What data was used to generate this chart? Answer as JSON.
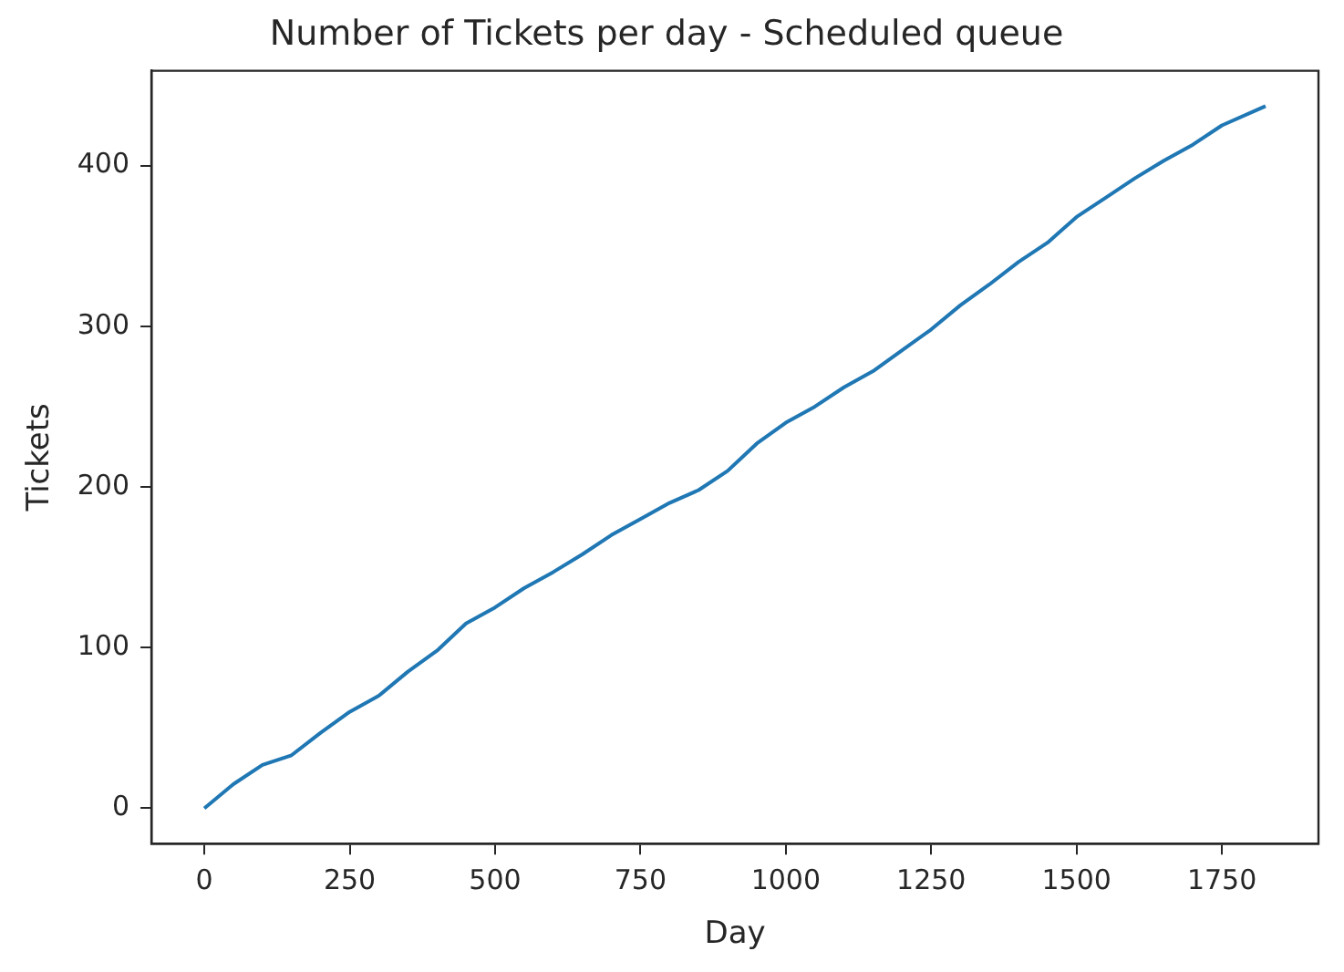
{
  "chart_data": {
    "type": "line",
    "title": "Number of Tickets per day - Scheduled queue",
    "xlabel": "Day",
    "ylabel": "Tickets",
    "x": [
      0,
      50,
      100,
      150,
      200,
      250,
      300,
      350,
      400,
      450,
      500,
      550,
      600,
      650,
      700,
      750,
      800,
      850,
      900,
      950,
      1000,
      1050,
      1100,
      1150,
      1200,
      1250,
      1300,
      1350,
      1400,
      1450,
      1500,
      1550,
      1600,
      1650,
      1700,
      1750,
      1825
    ],
    "series": [
      {
        "color": "#1f77b4",
        "values": [
          0,
          15,
          27,
          33,
          47,
          60,
          70,
          85,
          98,
          115,
          125,
          137,
          147,
          158,
          170,
          180,
          190,
          198,
          210,
          227,
          240,
          250,
          262,
          272,
          285,
          298,
          313,
          326,
          340,
          352,
          368,
          380,
          392,
          403,
          413,
          425,
          437
        ]
      }
    ],
    "xlim": [
      -91,
      1916
    ],
    "xticks": [
      0,
      250,
      500,
      750,
      1000,
      1250,
      1500,
      1750
    ],
    "ylim": [
      -22,
      459
    ],
    "yticks": [
      0,
      100,
      200,
      300,
      400
    ],
    "grid": false,
    "legend": false,
    "marker": "none",
    "line_style": "solid"
  }
}
